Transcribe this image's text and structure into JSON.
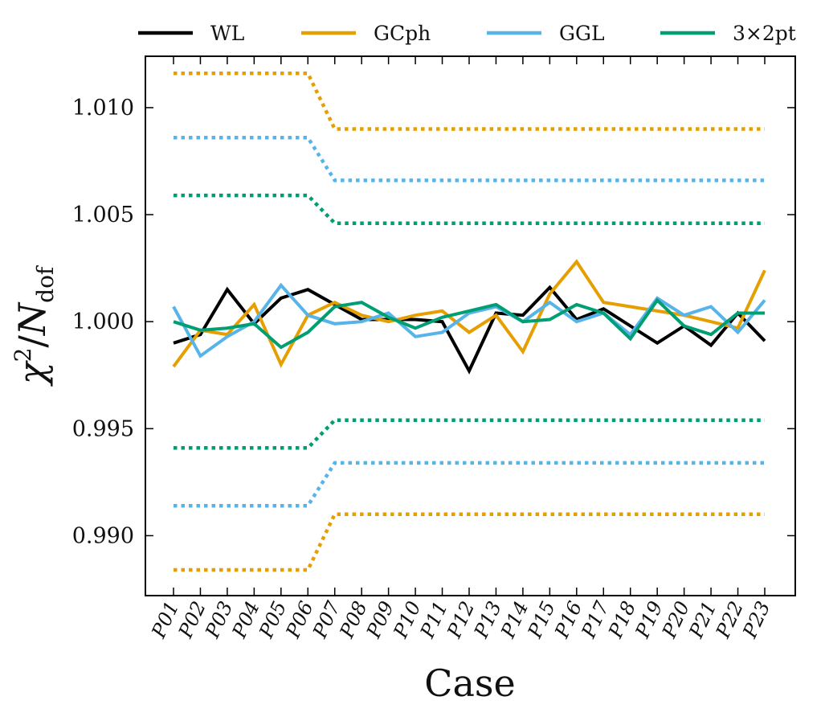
{
  "chart_data": {
    "type": "line",
    "xlabel": "Case",
    "ylabel": {
      "symbol": "χ",
      "superscript": "2",
      "slash": "/",
      "main": "N",
      "subscript": "dof"
    },
    "ylim": [
      0.9872,
      1.0124
    ],
    "yticks": [
      0.99,
      0.995,
      1.0,
      1.005,
      1.01
    ],
    "ytick_labels": [
      "0.990",
      "0.995",
      "1.000",
      "1.005",
      "1.010"
    ],
    "categories": [
      "P01",
      "P02",
      "P03",
      "P04",
      "P05",
      "P06",
      "P07",
      "P08",
      "P09",
      "P10",
      "P11",
      "P12",
      "P13",
      "P14",
      "P15",
      "P16",
      "P17",
      "P18",
      "P19",
      "P20",
      "P21",
      "P22",
      "P23"
    ],
    "legend": {
      "position": "top",
      "entries": [
        "WL",
        "GCph",
        "GGL",
        "3×2pt"
      ]
    },
    "series": [
      {
        "name": "WL",
        "color": "#000000",
        "values": [
          0.999,
          0.9994,
          1.0015,
          0.9999,
          1.0011,
          1.0015,
          1.0008,
          1.0001,
          1.0001,
          1.0001,
          1.0,
          0.9977,
          1.0004,
          1.0003,
          1.0016,
          1.0001,
          1.0006,
          0.9998,
          0.999,
          0.9998,
          0.9989,
          1.0004,
          0.9991
        ]
      },
      {
        "name": "GCph",
        "color": "#E69F00",
        "values": [
          0.9979,
          0.9996,
          0.9994,
          1.0008,
          0.998,
          1.0003,
          1.0009,
          1.0003,
          1.0,
          1.0003,
          1.0005,
          0.9995,
          1.0003,
          0.9986,
          1.0013,
          1.0028,
          1.0009,
          1.0007,
          1.0005,
          1.0003,
          1.0,
          0.9997,
          1.0024
        ]
      },
      {
        "name": "GGL",
        "color": "#56B4E9",
        "values": [
          1.0007,
          0.9984,
          0.9993,
          1.0,
          1.0017,
          1.0003,
          0.9999,
          1.0,
          1.0004,
          0.9993,
          0.9995,
          1.0004,
          1.0007,
          1.0,
          1.0009,
          1.0,
          1.0004,
          0.9994,
          1.0011,
          1.0003,
          1.0007,
          0.9995,
          1.001
        ]
      },
      {
        "name": "3×2pt",
        "color": "#009E73",
        "values": [
          1.0,
          0.9996,
          0.9997,
          0.9999,
          0.9988,
          0.9995,
          1.0007,
          1.0009,
          1.0002,
          0.9997,
          1.0002,
          1.0005,
          1.0008,
          1.0,
          1.0001,
          1.0008,
          1.0004,
          0.9992,
          1.001,
          0.9998,
          0.9994,
          1.0004,
          1.0004
        ]
      }
    ],
    "bounds": [
      {
        "series": "GCph",
        "side": "upper",
        "color": "#E69F00",
        "values": [
          1.0116,
          1.0116,
          1.0116,
          1.0116,
          1.0116,
          1.0116,
          1.009,
          1.009,
          1.009,
          1.009,
          1.009,
          1.009,
          1.009,
          1.009,
          1.009,
          1.009,
          1.009,
          1.009,
          1.009,
          1.009,
          1.009,
          1.009,
          1.009
        ]
      },
      {
        "series": "GGL",
        "side": "upper",
        "color": "#56B4E9",
        "values": [
          1.0086,
          1.0086,
          1.0086,
          1.0086,
          1.0086,
          1.0086,
          1.0066,
          1.0066,
          1.0066,
          1.0066,
          1.0066,
          1.0066,
          1.0066,
          1.0066,
          1.0066,
          1.0066,
          1.0066,
          1.0066,
          1.0066,
          1.0066,
          1.0066,
          1.0066,
          1.0066
        ]
      },
      {
        "series": "3×2pt",
        "side": "upper",
        "color": "#009E73",
        "values": [
          1.0059,
          1.0059,
          1.0059,
          1.0059,
          1.0059,
          1.0059,
          1.0046,
          1.0046,
          1.0046,
          1.0046,
          1.0046,
          1.0046,
          1.0046,
          1.0046,
          1.0046,
          1.0046,
          1.0046,
          1.0046,
          1.0046,
          1.0046,
          1.0046,
          1.0046,
          1.0046
        ]
      },
      {
        "series": "3×2pt",
        "side": "lower",
        "color": "#009E73",
        "values": [
          0.9941,
          0.9941,
          0.9941,
          0.9941,
          0.9941,
          0.9941,
          0.9954,
          0.9954,
          0.9954,
          0.9954,
          0.9954,
          0.9954,
          0.9954,
          0.9954,
          0.9954,
          0.9954,
          0.9954,
          0.9954,
          0.9954,
          0.9954,
          0.9954,
          0.9954,
          0.9954
        ]
      },
      {
        "series": "GGL",
        "side": "lower",
        "color": "#56B4E9",
        "values": [
          0.9914,
          0.9914,
          0.9914,
          0.9914,
          0.9914,
          0.9914,
          0.9934,
          0.9934,
          0.9934,
          0.9934,
          0.9934,
          0.9934,
          0.9934,
          0.9934,
          0.9934,
          0.9934,
          0.9934,
          0.9934,
          0.9934,
          0.9934,
          0.9934,
          0.9934,
          0.9934
        ]
      },
      {
        "series": "GCph",
        "side": "lower",
        "color": "#E69F00",
        "values": [
          0.9884,
          0.9884,
          0.9884,
          0.9884,
          0.9884,
          0.9884,
          0.991,
          0.991,
          0.991,
          0.991,
          0.991,
          0.991,
          0.991,
          0.991,
          0.991,
          0.991,
          0.991,
          0.991,
          0.991,
          0.991,
          0.991,
          0.991,
          0.991
        ]
      }
    ]
  }
}
